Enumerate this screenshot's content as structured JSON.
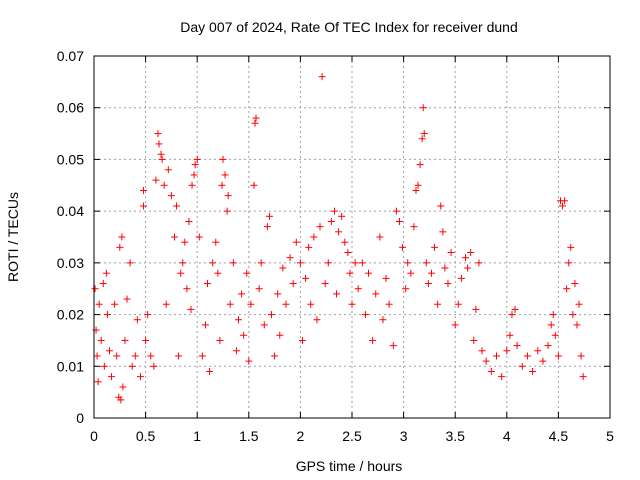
{
  "chart_data": {
    "type": "scatter",
    "title": "Day 007 of 2024, Rate Of TEC Index for receiver dund",
    "xlabel": "GPS time / hours",
    "ylabel": "ROTI / TECUs",
    "xlim": [
      0,
      5
    ],
    "ylim": [
      0,
      0.07
    ],
    "x_ticks": [
      0,
      0.5,
      1,
      1.5,
      2,
      2.5,
      3,
      3.5,
      4,
      4.5,
      5
    ],
    "x_tick_labels": [
      "0",
      "0.5",
      "1",
      "1.5",
      "2",
      "2.5",
      "3",
      "3.5",
      "4",
      "4.5",
      "5"
    ],
    "y_ticks": [
      0,
      0.01,
      0.02,
      0.03,
      0.04,
      0.05,
      0.06,
      0.07
    ],
    "y_tick_labels": [
      "0",
      "0.01",
      "0.02",
      "0.03",
      "0.04",
      "0.05",
      "0.06",
      "0.07"
    ],
    "grid": true,
    "marker": "+",
    "color": "#ff0000",
    "series": [
      {
        "name": "ROTI",
        "points": [
          [
            0.01,
            0.025
          ],
          [
            0.02,
            0.017
          ],
          [
            0.03,
            0.012
          ],
          [
            0.04,
            0.007
          ],
          [
            0.05,
            0.022
          ],
          [
            0.07,
            0.015
          ],
          [
            0.09,
            0.026
          ],
          [
            0.1,
            0.01
          ],
          [
            0.12,
            0.028
          ],
          [
            0.13,
            0.02
          ],
          [
            0.15,
            0.013
          ],
          [
            0.17,
            0.008
          ],
          [
            0.2,
            0.022
          ],
          [
            0.22,
            0.012
          ],
          [
            0.24,
            0.004
          ],
          [
            0.25,
            0.033
          ],
          [
            0.26,
            0.0035
          ],
          [
            0.27,
            0.035
          ],
          [
            0.28,
            0.006
          ],
          [
            0.3,
            0.015
          ],
          [
            0.32,
            0.023
          ],
          [
            0.35,
            0.03
          ],
          [
            0.37,
            0.01
          ],
          [
            0.4,
            0.012
          ],
          [
            0.42,
            0.019
          ],
          [
            0.45,
            0.008
          ],
          [
            0.48,
            0.044
          ],
          [
            0.48,
            0.041
          ],
          [
            0.5,
            0.015
          ],
          [
            0.52,
            0.02
          ],
          [
            0.55,
            0.012
          ],
          [
            0.58,
            0.01
          ],
          [
            0.6,
            0.046
          ],
          [
            0.62,
            0.055
          ],
          [
            0.63,
            0.053
          ],
          [
            0.65,
            0.051
          ],
          [
            0.66,
            0.05
          ],
          [
            0.68,
            0.045
          ],
          [
            0.7,
            0.022
          ],
          [
            0.72,
            0.048
          ],
          [
            0.75,
            0.043
          ],
          [
            0.78,
            0.035
          ],
          [
            0.8,
            0.041
          ],
          [
            0.82,
            0.012
          ],
          [
            0.84,
            0.028
          ],
          [
            0.86,
            0.03
          ],
          [
            0.88,
            0.034
          ],
          [
            0.9,
            0.025
          ],
          [
            0.92,
            0.038
          ],
          [
            0.94,
            0.021
          ],
          [
            0.95,
            0.045
          ],
          [
            0.97,
            0.047
          ],
          [
            0.98,
            0.049
          ],
          [
            1.0,
            0.05
          ],
          [
            1.02,
            0.035
          ],
          [
            1.05,
            0.012
          ],
          [
            1.08,
            0.018
          ],
          [
            1.1,
            0.026
          ],
          [
            1.12,
            0.009
          ],
          [
            1.15,
            0.03
          ],
          [
            1.18,
            0.034
          ],
          [
            1.2,
            0.028
          ],
          [
            1.22,
            0.015
          ],
          [
            1.24,
            0.045
          ],
          [
            1.25,
            0.05
          ],
          [
            1.27,
            0.047
          ],
          [
            1.29,
            0.04
          ],
          [
            1.3,
            0.043
          ],
          [
            1.32,
            0.022
          ],
          [
            1.35,
            0.03
          ],
          [
            1.38,
            0.013
          ],
          [
            1.4,
            0.019
          ],
          [
            1.43,
            0.024
          ],
          [
            1.45,
            0.016
          ],
          [
            1.48,
            0.028
          ],
          [
            1.5,
            0.011
          ],
          [
            1.52,
            0.022
          ],
          [
            1.55,
            0.045
          ],
          [
            1.56,
            0.057
          ],
          [
            1.57,
            0.058
          ],
          [
            1.6,
            0.025
          ],
          [
            1.62,
            0.03
          ],
          [
            1.65,
            0.018
          ],
          [
            1.68,
            0.037
          ],
          [
            1.7,
            0.039
          ],
          [
            1.72,
            0.02
          ],
          [
            1.75,
            0.012
          ],
          [
            1.78,
            0.024
          ],
          [
            1.8,
            0.016
          ],
          [
            1.83,
            0.029
          ],
          [
            1.86,
            0.022
          ],
          [
            1.9,
            0.031
          ],
          [
            1.93,
            0.026
          ],
          [
            1.96,
            0.034
          ],
          [
            2.0,
            0.03
          ],
          [
            2.02,
            0.015
          ],
          [
            2.05,
            0.027
          ],
          [
            2.08,
            0.033
          ],
          [
            2.1,
            0.022
          ],
          [
            2.13,
            0.035
          ],
          [
            2.16,
            0.019
          ],
          [
            2.19,
            0.037
          ],
          [
            2.21,
            0.066
          ],
          [
            2.24,
            0.026
          ],
          [
            2.27,
            0.03
          ],
          [
            2.3,
            0.038
          ],
          [
            2.33,
            0.04
          ],
          [
            2.35,
            0.024
          ],
          [
            2.37,
            0.036
          ],
          [
            2.4,
            0.039
          ],
          [
            2.43,
            0.034
          ],
          [
            2.46,
            0.032
          ],
          [
            2.48,
            0.028
          ],
          [
            2.5,
            0.022
          ],
          [
            2.53,
            0.03
          ],
          [
            2.56,
            0.025
          ],
          [
            2.6,
            0.03
          ],
          [
            2.63,
            0.02
          ],
          [
            2.66,
            0.028
          ],
          [
            2.7,
            0.015
          ],
          [
            2.73,
            0.024
          ],
          [
            2.77,
            0.035
          ],
          [
            2.8,
            0.019
          ],
          [
            2.83,
            0.027
          ],
          [
            2.86,
            0.022
          ],
          [
            2.9,
            0.014
          ],
          [
            2.93,
            0.04
          ],
          [
            2.96,
            0.038
          ],
          [
            2.99,
            0.033
          ],
          [
            3.02,
            0.025
          ],
          [
            3.04,
            0.03
          ],
          [
            3.07,
            0.028
          ],
          [
            3.1,
            0.037
          ],
          [
            3.12,
            0.044
          ],
          [
            3.14,
            0.045
          ],
          [
            3.16,
            0.049
          ],
          [
            3.18,
            0.054
          ],
          [
            3.19,
            0.06
          ],
          [
            3.2,
            0.055
          ],
          [
            3.22,
            0.03
          ],
          [
            3.24,
            0.026
          ],
          [
            3.27,
            0.028
          ],
          [
            3.3,
            0.033
          ],
          [
            3.33,
            0.022
          ],
          [
            3.36,
            0.041
          ],
          [
            3.38,
            0.036
          ],
          [
            3.4,
            0.029
          ],
          [
            3.43,
            0.026
          ],
          [
            3.46,
            0.032
          ],
          [
            3.5,
            0.018
          ],
          [
            3.53,
            0.022
          ],
          [
            3.56,
            0.027
          ],
          [
            3.6,
            0.031
          ],
          [
            3.62,
            0.029
          ],
          [
            3.65,
            0.032
          ],
          [
            3.68,
            0.015
          ],
          [
            3.7,
            0.021
          ],
          [
            3.73,
            0.03
          ],
          [
            3.76,
            0.013
          ],
          [
            3.8,
            0.011
          ],
          [
            3.85,
            0.009
          ],
          [
            3.9,
            0.012
          ],
          [
            3.95,
            0.008
          ],
          [
            4.0,
            0.013
          ],
          [
            4.03,
            0.016
          ],
          [
            4.05,
            0.02
          ],
          [
            4.08,
            0.021
          ],
          [
            4.1,
            0.014
          ],
          [
            4.15,
            0.01
          ],
          [
            4.2,
            0.012
          ],
          [
            4.25,
            0.009
          ],
          [
            4.3,
            0.013
          ],
          [
            4.35,
            0.011
          ],
          [
            4.4,
            0.014
          ],
          [
            4.43,
            0.018
          ],
          [
            4.45,
            0.02
          ],
          [
            4.47,
            0.016
          ],
          [
            4.5,
            0.012
          ],
          [
            4.52,
            0.042
          ],
          [
            4.54,
            0.041
          ],
          [
            4.56,
            0.042
          ],
          [
            4.58,
            0.025
          ],
          [
            4.6,
            0.03
          ],
          [
            4.62,
            0.033
          ],
          [
            4.64,
            0.02
          ],
          [
            4.66,
            0.026
          ],
          [
            4.68,
            0.018
          ],
          [
            4.7,
            0.022
          ],
          [
            4.72,
            0.012
          ],
          [
            4.74,
            0.008
          ]
        ]
      }
    ]
  }
}
